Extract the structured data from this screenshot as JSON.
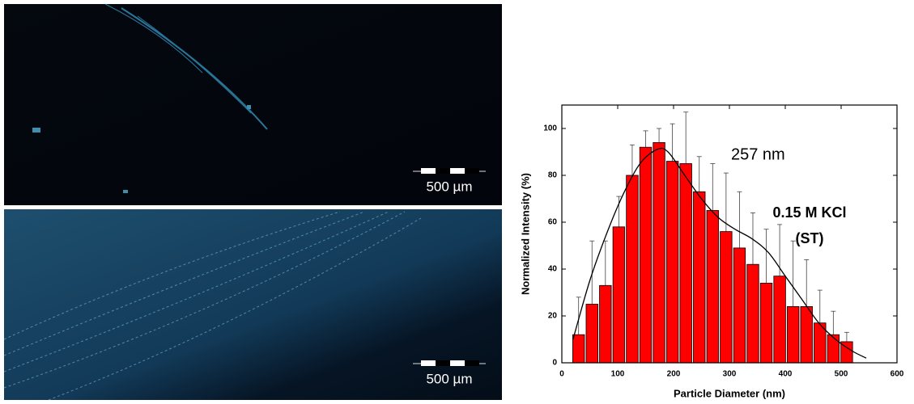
{
  "panels": [
    {
      "scale_label": "500 µm"
    },
    {
      "scale_label": "500 µm"
    }
  ],
  "chart_data": {
    "type": "histogram",
    "xlabel": "Particle Diameter (nm)",
    "ylabel": "Normalized Intensity (%)",
    "bins": [
      18,
      42,
      66,
      90,
      114,
      138,
      162,
      186,
      210,
      234,
      258,
      282,
      306,
      330,
      354,
      378,
      402,
      426,
      450,
      474,
      498,
      522
    ],
    "values": [
      12,
      25,
      33,
      58,
      80,
      92,
      94,
      86,
      85,
      73,
      65,
      56,
      49,
      42,
      34,
      37,
      24,
      24,
      17,
      12,
      9
    ],
    "errors": [
      16,
      27,
      19,
      13,
      13,
      7,
      6,
      16,
      22,
      15,
      20,
      25,
      24,
      22,
      23,
      22,
      28,
      20,
      14,
      10,
      4
    ],
    "color": "#ff0000",
    "fit": {
      "color": "#000000",
      "x": [
        20,
        50,
        80,
        110,
        140,
        170,
        190,
        220,
        250,
        280,
        310,
        340,
        370,
        400,
        430,
        460,
        490,
        520,
        545
      ],
      "values": [
        10,
        35,
        55,
        72,
        85,
        91,
        90,
        80,
        70,
        62,
        57,
        53,
        47,
        37,
        27,
        17,
        10,
        5,
        2
      ]
    },
    "annotations": [
      "257 nm",
      "0.15 M KCl",
      "(ST)"
    ],
    "xlim": [
      0,
      600
    ],
    "ylim": [
      0,
      110
    ],
    "xticks": [
      0,
      100,
      200,
      300,
      400,
      500,
      600
    ],
    "yticks": [
      0,
      20,
      40,
      60,
      80,
      100
    ]
  }
}
